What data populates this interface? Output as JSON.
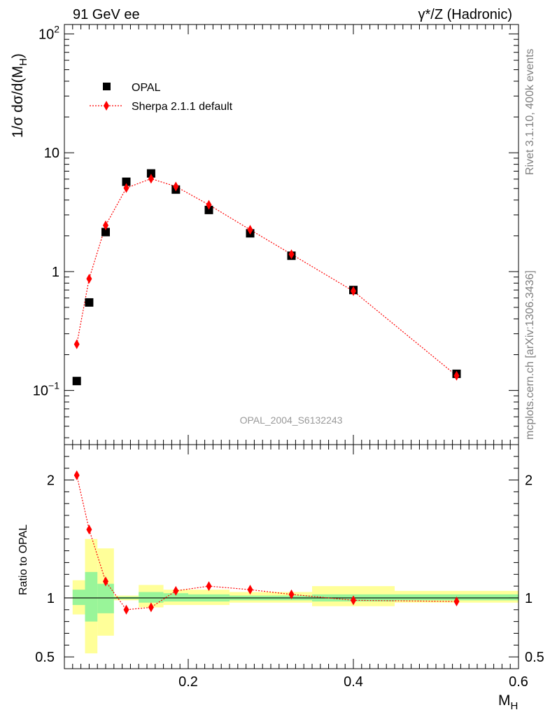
{
  "header": {
    "left": "91 GeV ee",
    "right": "γ*/Z (Hadronic)"
  },
  "side_labels": {
    "rivet": "Rivet 3.1.10,  400k events",
    "mcplots": "mcplots.cern.ch [arXiv:1306.3436]"
  },
  "chart_data": {
    "type": "scatter",
    "analysis_label": "OPAL_2004_S6132243",
    "xlabel": "M",
    "xlabel_sub": "H",
    "xlim": [
      0.05,
      0.6
    ],
    "x_ticks": [
      "0.2",
      "0.4",
      "0.6"
    ],
    "x_tick_values": [
      0.2,
      0.4,
      0.6
    ],
    "main": {
      "ylabel": "1/σ dσ/d(M",
      "ylabel_sub": "H",
      "ylabel_end": ")",
      "yscale": "log",
      "ylim": [
        0.035,
        120
      ],
      "y_tick_values": [
        0.1,
        1,
        10,
        100
      ],
      "y_ticks": [
        "10",
        "1",
        "10",
        "10"
      ],
      "y_tick_exps": [
        "−1",
        "",
        "",
        "2"
      ],
      "legend": {
        "placement": "top-left",
        "opal": "OPAL",
        "sherpa": "Sherpa 2.1.1 default"
      },
      "series": [
        {
          "name": "OPAL",
          "marker": "square",
          "color": "#000000",
          "x": [
            0.065,
            0.08,
            0.1,
            0.125,
            0.155,
            0.185,
            0.225,
            0.275,
            0.325,
            0.4,
            0.525
          ],
          "y": [
            0.12,
            0.55,
            2.15,
            5.7,
            6.7,
            4.9,
            3.3,
            2.1,
            1.36,
            0.7,
            0.138
          ]
        },
        {
          "name": "Sherpa 2.1.1 default",
          "marker": "diamond",
          "color": "#ff0000",
          "x": [
            0.065,
            0.08,
            0.1,
            0.125,
            0.155,
            0.185,
            0.225,
            0.275,
            0.325,
            0.4,
            0.525
          ],
          "y": [
            0.245,
            0.87,
            2.45,
            5.05,
            6.05,
            5.2,
            3.65,
            2.25,
            1.4,
            0.685,
            0.133
          ]
        }
      ]
    },
    "ratio": {
      "ylabel": "Ratio to OPAL",
      "ylim": [
        0.4,
        2.3
      ],
      "y_ticks": [
        "2",
        "1",
        "0.5"
      ],
      "y_tick_values": [
        2,
        1,
        0.5
      ],
      "x": [
        0.065,
        0.08,
        0.1,
        0.125,
        0.155,
        0.185,
        0.225,
        0.275,
        0.325,
        0.4,
        0.525
      ],
      "y": [
        2.04,
        1.58,
        1.14,
        0.9,
        0.92,
        1.06,
        1.1,
        1.07,
        1.03,
        0.98,
        0.97
      ],
      "bands": [
        {
          "x0": 0.06,
          "x1": 0.075,
          "inner": [
            0.94,
            1.07
          ],
          "outer": [
            0.86,
            1.15
          ]
        },
        {
          "x0": 0.075,
          "x1": 0.09,
          "inner": [
            0.8,
            1.22
          ],
          "outer": [
            0.53,
            1.5
          ]
        },
        {
          "x0": 0.09,
          "x1": 0.11,
          "inner": [
            0.87,
            1.12
          ],
          "outer": [
            0.68,
            1.42
          ]
        },
        {
          "x0": 0.11,
          "x1": 0.14,
          "inner": [
            0.99,
            1.01
          ],
          "outer": [
            0.98,
            1.02
          ]
        },
        {
          "x0": 0.14,
          "x1": 0.17,
          "inner": [
            0.96,
            1.05
          ],
          "outer": [
            0.92,
            1.11
          ]
        },
        {
          "x0": 0.17,
          "x1": 0.2,
          "inner": [
            0.97,
            1.04
          ],
          "outer": [
            0.94,
            1.07
          ]
        },
        {
          "x0": 0.2,
          "x1": 0.25,
          "inner": [
            0.97,
            1.03
          ],
          "outer": [
            0.94,
            1.07
          ]
        },
        {
          "x0": 0.25,
          "x1": 0.3,
          "inner": [
            0.98,
            1.02
          ],
          "outer": [
            0.96,
            1.05
          ]
        },
        {
          "x0": 0.3,
          "x1": 0.35,
          "inner": [
            0.98,
            1.02
          ],
          "outer": [
            0.96,
            1.05
          ]
        },
        {
          "x0": 0.35,
          "x1": 0.45,
          "inner": [
            0.97,
            1.03
          ],
          "outer": [
            0.93,
            1.1
          ]
        },
        {
          "x0": 0.45,
          "x1": 0.6,
          "inner": [
            0.98,
            1.03
          ],
          "outer": [
            0.96,
            1.06
          ]
        }
      ],
      "inner_color": "#99f599",
      "outer_color": "#ffff99"
    }
  }
}
